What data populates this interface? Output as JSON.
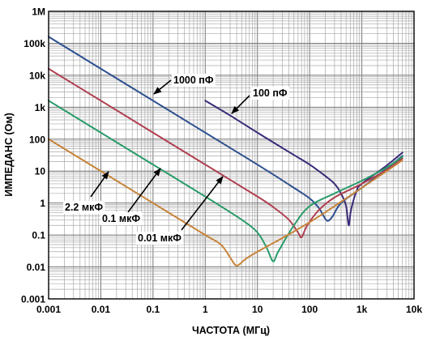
{
  "chart_data": {
    "type": "line",
    "title": "",
    "xlabel": "ЧАСТОТА (МГц)",
    "ylabel": "ИМПЕДАНС (Ом)",
    "x_scale": "log",
    "y_scale": "log",
    "xlim": [
      0.001,
      10000
    ],
    "ylim": [
      0.001,
      1000000
    ],
    "x_ticks": [
      0.001,
      0.01,
      0.1,
      1,
      10,
      100,
      1000,
      10000
    ],
    "x_tick_labels": [
      "0.001",
      "0.01",
      "0.1",
      "1",
      "10",
      "100",
      "1k",
      "10k"
    ],
    "y_ticks": [
      0.001,
      0.01,
      0.1,
      1,
      10,
      100,
      1000,
      10000,
      100000,
      1000000
    ],
    "y_tick_labels": [
      "0.001",
      "0.01",
      "0.1",
      "1",
      "10",
      "100",
      "1k",
      "10k",
      "100k",
      "1M"
    ],
    "grid": true,
    "series": [
      {
        "name": "1000 пФ",
        "color": "#2e4f8f",
        "points": [
          [
            0.001,
            160000
          ],
          [
            0.01,
            16000
          ],
          [
            0.1,
            1600
          ],
          [
            1,
            160
          ],
          [
            10,
            16
          ],
          [
            50,
            3
          ],
          [
            100,
            1.4
          ],
          [
            150,
            0.7
          ],
          [
            200,
            0.32
          ],
          [
            230,
            0.28
          ],
          [
            280,
            0.4
          ],
          [
            400,
            1
          ],
          [
            1000,
            3
          ],
          [
            3000,
            12
          ],
          [
            6000,
            30
          ]
        ]
      },
      {
        "name": "100 пФ",
        "color": "#3a2a78",
        "points": [
          [
            1,
            1600
          ],
          [
            3,
            550
          ],
          [
            10,
            160
          ],
          [
            50,
            32
          ],
          [
            100,
            16
          ],
          [
            200,
            7
          ],
          [
            300,
            4
          ],
          [
            400,
            2
          ],
          [
            500,
            0.8
          ],
          [
            560,
            0.2
          ],
          [
            620,
            0.6
          ],
          [
            800,
            2.5
          ],
          [
            1000,
            4
          ],
          [
            3000,
            15
          ],
          [
            6000,
            38
          ]
        ]
      },
      {
        "name": "0.01 мкФ",
        "color": "#b04050",
        "points": [
          [
            0.001,
            16000
          ],
          [
            0.01,
            1600
          ],
          [
            0.1,
            160
          ],
          [
            1,
            16
          ],
          [
            10,
            1.6
          ],
          [
            20,
            0.75
          ],
          [
            40,
            0.3
          ],
          [
            60,
            0.12
          ],
          [
            70,
            0.085
          ],
          [
            90,
            0.2
          ],
          [
            150,
            0.6
          ],
          [
            300,
            1.5
          ],
          [
            1000,
            4
          ],
          [
            3000,
            11
          ],
          [
            6000,
            25
          ]
        ]
      },
      {
        "name": "0.1 мкФ",
        "color": "#2a9c6a",
        "points": [
          [
            0.001,
            1600
          ],
          [
            0.01,
            160
          ],
          [
            0.1,
            16
          ],
          [
            1,
            1.6
          ],
          [
            5,
            0.3
          ],
          [
            10,
            0.12
          ],
          [
            15,
            0.04
          ],
          [
            20,
            0.015
          ],
          [
            25,
            0.03
          ],
          [
            50,
            0.2
          ],
          [
            100,
            0.8
          ],
          [
            300,
            2
          ],
          [
            1000,
            5
          ],
          [
            3000,
            13
          ],
          [
            6000,
            28
          ]
        ]
      },
      {
        "name": "2.2 мкФ",
        "color": "#c8843a",
        "points": [
          [
            0.001,
            100
          ],
          [
            0.01,
            10
          ],
          [
            0.1,
            1
          ],
          [
            1,
            0.1
          ],
          [
            2,
            0.05
          ],
          [
            3,
            0.02
          ],
          [
            4,
            0.011
          ],
          [
            6,
            0.018
          ],
          [
            10,
            0.03
          ],
          [
            30,
            0.08
          ],
          [
            100,
            0.25
          ],
          [
            300,
            0.8
          ],
          [
            1000,
            3
          ],
          [
            3000,
            10
          ],
          [
            6000,
            22
          ]
        ]
      }
    ],
    "annotations": [
      {
        "text": "1000 пФ",
        "series": "1000 пФ"
      },
      {
        "text": "100 пФ",
        "series": "100 пФ"
      },
      {
        "text": "2.2 мкФ",
        "series": "2.2 мкФ"
      },
      {
        "text": "0.1 мкФ",
        "series": "0.1 мкФ"
      },
      {
        "text": "0.01 мкФ",
        "series": "0.01 мкФ"
      }
    ]
  }
}
